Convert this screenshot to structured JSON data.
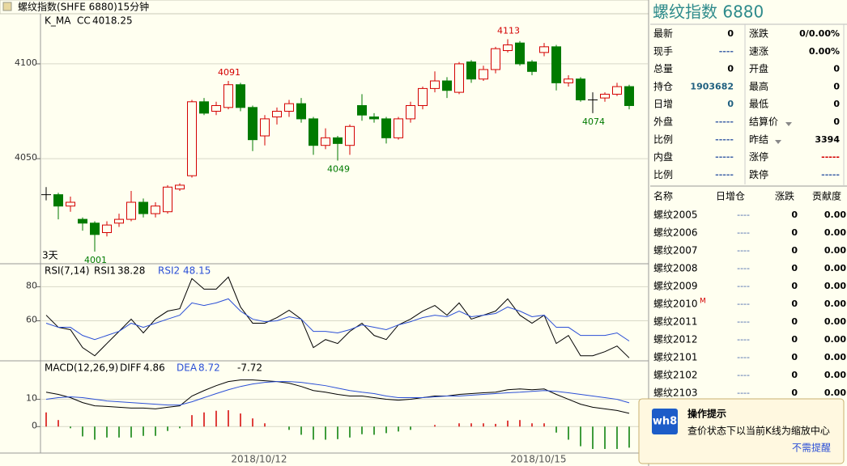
{
  "header": {
    "title": "螺纹指数(SHFE 6880)15分钟"
  },
  "price_panel": {
    "label": "K_MA",
    "cc_label": "CC",
    "cc_value": 4018.25,
    "days_label": "3天",
    "ylim": [
      3995,
      4126
    ],
    "yticks": [
      4050,
      4100
    ],
    "up_color": "#d40000",
    "down_color": "#007a00",
    "open": [
      4031,
      4031,
      4025,
      4018,
      4016,
      4011,
      4016,
      4018,
      4027,
      4021,
      4022,
      4034,
      4041,
      4080,
      4075,
      4077,
      4089,
      4077,
      4062,
      4072,
      4075,
      4079,
      4071,
      4057,
      4061,
      4057,
      4078,
      4072,
      4071,
      4061,
      4071,
      4078,
      4087,
      4091,
      4085,
      4101,
      4092,
      4097,
      4107,
      4111,
      4101,
      4106,
      4109,
      4090,
      4092,
      4081,
      4082,
      4084,
      4088
    ],
    "high": [
      4035,
      4032,
      4030,
      4019,
      4017,
      4017,
      4021,
      4033,
      4029,
      4027,
      4036,
      4037,
      4081,
      4082,
      4080,
      4091,
      4090,
      4078,
      4073,
      4077,
      4081,
      4082,
      4072,
      4066,
      4062,
      4068,
      4084,
      4074,
      4072,
      4072,
      4080,
      4088,
      4096,
      4093,
      4101,
      4102,
      4099,
      4109,
      4113,
      4112,
      4102,
      4111,
      4110,
      4094,
      4093,
      4085,
      4085,
      4090,
      4089
    ],
    "low": [
      4028,
      4018,
      4022,
      4012,
      4001,
      4009,
      4014,
      4017,
      4019,
      4019,
      4021,
      4033,
      4040,
      4073,
      4073,
      4076,
      4075,
      4054,
      4057,
      4068,
      4072,
      4069,
      4052,
      4055,
      4049,
      4052,
      4070,
      4069,
      4058,
      4060,
      4069,
      4076,
      4085,
      4082,
      4084,
      4090,
      4091,
      4095,
      4106,
      4099,
      4094,
      4104,
      4086,
      4088,
      4080,
      4074,
      4080,
      4083,
      4076
    ],
    "close": [
      4031,
      4025,
      4027,
      4016,
      4010,
      4015,
      4018,
      4027,
      4021,
      4025,
      4035,
      4036,
      4080,
      4074,
      4078,
      4089,
      4077,
      4060,
      4071,
      4075,
      4079,
      4071,
      4057,
      4061,
      4058,
      4067,
      4073,
      4071,
      4061,
      4071,
      4078,
      4087,
      4091,
      4086,
      4100,
      4092,
      4097,
      4108,
      4110,
      4100,
      4096,
      4109,
      4090,
      4092,
      4081,
      4081,
      4084,
      4088,
      4078
    ],
    "extreme_labels": [
      4091,
      4001,
      4049,
      4113,
      4074
    ]
  },
  "rsi_panel": {
    "label": "RSI(7,14)",
    "ylim": [
      37,
      93
    ],
    "yticks": [
      60,
      80
    ],
    "series": [
      {
        "name": "RSI1",
        "color": "#000000",
        "values": [
          63.3,
          56.2,
          54.8,
          44.3,
          39.5,
          46.7,
          53.8,
          61,
          52.9,
          61,
          65.7,
          67.1,
          84.8,
          78.6,
          78.6,
          85.7,
          68.1,
          58.6,
          58.6,
          61.9,
          66.2,
          61,
          44.3,
          49,
          46.7,
          53.8,
          58.6,
          51.4,
          49,
          57.6,
          61,
          65.7,
          69,
          63.3,
          70.5,
          61,
          63.3,
          65.7,
          72.9,
          63.3,
          58.6,
          63.3,
          46.7,
          51.4,
          39.5,
          39.5,
          41.9,
          45.2,
          38.28
        ]
      },
      {
        "name": "RSI2",
        "color": "#2b4fd6",
        "values": [
          58.6,
          56.2,
          56.2,
          51.4,
          49,
          51.4,
          53.8,
          58.6,
          56.2,
          58.6,
          61,
          63.3,
          70.5,
          69,
          70.5,
          72.9,
          65.7,
          61,
          59.5,
          60,
          62.4,
          61,
          53.8,
          53.8,
          52.9,
          54.8,
          57.6,
          56.2,
          54.8,
          57.6,
          59.5,
          61.9,
          63.3,
          62.4,
          65.7,
          62.4,
          63.3,
          64.3,
          68.1,
          65.7,
          62.4,
          63.3,
          56.2,
          56.2,
          51.4,
          51.4,
          51.4,
          52.9,
          48.15
        ]
      }
    ]
  },
  "macd_panel": {
    "label": "MACD(12,26,9)",
    "ylim": [
      -9.4,
      23.8
    ],
    "yticks": [
      0,
      10
    ],
    "series": [
      {
        "name": "DIFF",
        "color": "#000000",
        "values": [
          12.6,
          11.8,
          10.6,
          8.8,
          7.6,
          7.4,
          7.1,
          6.8,
          6.8,
          6.5,
          7.1,
          7.6,
          11.2,
          13.2,
          15,
          16.5,
          17.1,
          17.1,
          16.8,
          16.5,
          15.9,
          14.7,
          13.2,
          12.6,
          11.8,
          11.2,
          11.2,
          10.6,
          10,
          9.7,
          10,
          10.6,
          11.2,
          11.2,
          11.8,
          12.1,
          12.4,
          12.6,
          13.5,
          13.8,
          13.5,
          13.8,
          11.8,
          10,
          8.2,
          7.1,
          6.5,
          5.9,
          4.86
        ]
      },
      {
        "name": "DEA",
        "color": "#2b4fd6",
        "values": [
          10,
          10.6,
          10.9,
          10.6,
          10,
          9.4,
          9.1,
          8.8,
          8.5,
          8.2,
          7.9,
          7.9,
          9.1,
          10.6,
          12.1,
          13.5,
          14.7,
          15.6,
          16.2,
          16.5,
          16.5,
          16.2,
          15.6,
          15,
          14.1,
          13.2,
          12.6,
          12.1,
          11.2,
          10.6,
          10.6,
          10.6,
          10.9,
          11.2,
          11.2,
          11.5,
          11.8,
          12.1,
          12.4,
          12.6,
          12.9,
          13.2,
          12.9,
          12.4,
          11.8,
          11.2,
          10.6,
          10,
          8.72
        ]
      }
    ],
    "bars": {
      "up_color": "#d40000",
      "down_color": "#007a00",
      "values": [
        5.2,
        2.4,
        -0.6,
        -3.6,
        -4.8,
        -4,
        -4,
        -4,
        -3.4,
        -3.4,
        -1.6,
        -0.6,
        4.2,
        5.2,
        5.8,
        6,
        4.8,
        3,
        1.2,
        0,
        -1.2,
        -3,
        -4.8,
        -4.8,
        -4.6,
        -4,
        -2.8,
        -3,
        -2.4,
        -1.8,
        -1.2,
        0,
        0.6,
        0,
        1.2,
        1.2,
        1.2,
        1,
        2.2,
        2.4,
        1.2,
        1.2,
        -2.2,
        -4.8,
        -7.2,
        -8.2,
        -8.2,
        -8.2,
        -7.72
      ]
    }
  },
  "x_labels": [
    "2018/10/12",
    "2018/10/15"
  ],
  "quote": {
    "title": "螺纹指数  6880",
    "rows": [
      [
        "最新",
        0,
        "涨跌",
        "0/0.00%"
      ],
      [
        "现手",
        "----",
        "速涨",
        "0.00%"
      ],
      [
        "总量",
        0,
        "开盘",
        0
      ],
      [
        "持仓",
        1903682,
        "最高",
        0
      ],
      [
        "日增",
        0,
        "最低",
        0
      ],
      [
        "外盘",
        "-----",
        "结算价",
        0
      ],
      [
        "比例",
        "-----",
        "昨结",
        3394
      ],
      [
        "内盘",
        "-----",
        "涨停",
        "-----"
      ],
      [
        "比例",
        "-----",
        "跌停",
        "-----"
      ]
    ]
  },
  "contracts": {
    "header": [
      "名称",
      "日增仓",
      "涨跌",
      "贡献度"
    ],
    "marker": "M",
    "rows": [
      [
        "螺纹2005",
        "----",
        0,
        "0.00"
      ],
      [
        "螺纹2006",
        "----",
        0,
        "0.00"
      ],
      [
        "螺纹2007",
        "----",
        0,
        "0.00"
      ],
      [
        "螺纹2008",
        "----",
        0,
        "0.00"
      ],
      [
        "螺纹2009",
        "----",
        0,
        "0.00"
      ],
      [
        "螺纹2010",
        "----",
        0,
        "0.00"
      ],
      [
        "螺纹2011",
        "----",
        0,
        "0.00"
      ],
      [
        "螺纹2012",
        "----",
        0,
        "0.00"
      ],
      [
        "螺纹2101",
        "----",
        0,
        "0.00"
      ],
      [
        "螺纹2102",
        "----",
        0,
        "0.00"
      ],
      [
        "螺纹2103",
        "----",
        0,
        "0.00"
      ]
    ]
  },
  "popup": {
    "logo": "wh8",
    "title": "操作提示",
    "message": "查价状态下以当前K线为缩放中心",
    "dismiss": "不需提醒"
  }
}
